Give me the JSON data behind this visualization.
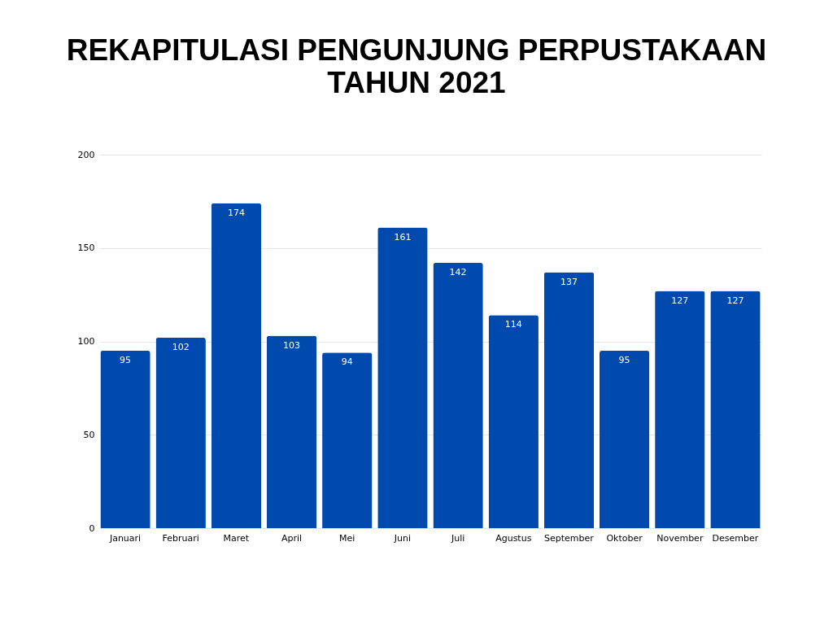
{
  "chart_data": {
    "type": "bar",
    "title": "REKAPITULASI PENGUNJUNG PERPUSTAKAAN TAHUN 2021",
    "categories": [
      "Januari",
      "Februari",
      "Maret",
      "April",
      "Mei",
      "Juni",
      "Juli",
      "Agustus",
      "September",
      "Oktober",
      "November",
      "Desember"
    ],
    "values": [
      95,
      102,
      174,
      103,
      94,
      161,
      142,
      114,
      137,
      95,
      127,
      127
    ],
    "color": "#004aad",
    "ylim": [
      0,
      200
    ],
    "yticks": [
      0,
      50,
      100,
      150,
      200
    ],
    "grid": "y",
    "data_labels": true
  }
}
